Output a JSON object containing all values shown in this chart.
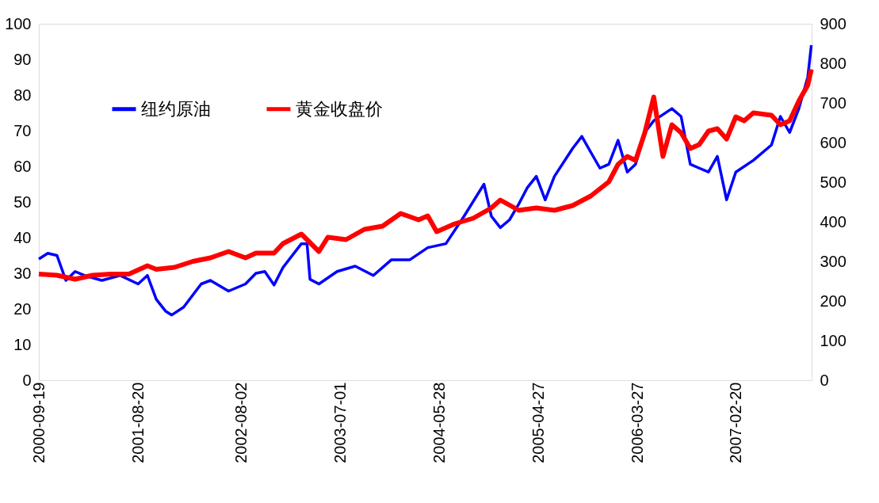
{
  "chart_data": {
    "type": "line",
    "xlim": [
      "2000-09-19",
      "2007-11-01"
    ],
    "xticks": [
      "2000-09-19",
      "2001-08-20",
      "2002-08-02",
      "2003-07-01",
      "2004-05-28",
      "2005-04-27",
      "2006-03-27",
      "2007-02-20"
    ],
    "ylim": [
      0,
      100
    ],
    "yticks": [
      0,
      10,
      20,
      30,
      40,
      50,
      60,
      70,
      80,
      90,
      100
    ],
    "y2lim": [
      0,
      900
    ],
    "y2ticks": [
      0,
      100,
      200,
      300,
      400,
      500,
      600,
      700,
      800,
      900
    ],
    "grid": false,
    "legend": "top left",
    "line_style": "solid",
    "marker": "none",
    "series": [
      {
        "name": "纽约原油",
        "color": "#0000ff",
        "x": [
          "2000-09-19",
          "2000-10-19",
          "2000-11-19",
          "2000-12-19",
          "2001-01-19",
          "2001-02-19",
          "2001-04-19",
          "2001-06-19",
          "2001-08-19",
          "2001-09-19",
          "2001-10-19",
          "2001-11-19",
          "2001-12-10",
          "2002-01-19",
          "2002-03-19",
          "2002-04-19",
          "2002-06-19",
          "2002-08-15",
          "2002-09-19",
          "2002-10-19",
          "2002-11-19",
          "2002-12-19",
          "2003-02-19",
          "2003-03-10",
          "2003-03-20",
          "2003-04-19",
          "2003-06-19",
          "2003-08-19",
          "2003-10-19",
          "2003-12-19",
          "2004-02-19",
          "2004-04-19",
          "2004-06-19",
          "2004-08-19",
          "2004-10-25",
          "2004-11-19",
          "2004-12-19",
          "2005-01-19",
          "2005-02-19",
          "2005-03-19",
          "2005-04-19",
          "2005-05-19",
          "2005-06-19",
          "2005-08-19",
          "2005-09-19",
          "2005-10-19",
          "2005-11-19",
          "2005-12-19",
          "2006-01-19",
          "2006-02-19",
          "2006-03-19",
          "2006-04-19",
          "2006-05-19",
          "2006-07-19",
          "2006-08-19",
          "2006-09-19",
          "2006-10-19",
          "2006-11-19",
          "2006-12-19",
          "2007-01-19",
          "2007-02-19",
          "2007-04-19",
          "2007-06-19",
          "2007-07-19",
          "2007-08-19",
          "2007-09-19",
          "2007-10-19",
          "2007-10-31"
        ],
        "values": [
          34,
          35.6,
          35,
          28,
          30.5,
          29.4,
          28,
          29.4,
          27,
          29.4,
          22.7,
          19.4,
          18.3,
          20.5,
          27,
          28,
          25,
          27,
          30,
          30.5,
          26.7,
          31.6,
          38.3,
          38.3,
          28.3,
          27,
          30.5,
          32,
          29.4,
          33.8,
          33.8,
          37.2,
          38.3,
          46,
          55,
          46,
          42.8,
          45,
          49.4,
          53.9,
          57.2,
          50.6,
          57.2,
          65,
          68.4,
          64,
          59.5,
          60.6,
          67.3,
          58.4,
          60.6,
          69.5,
          72.8,
          76.2,
          74,
          60.6,
          59.5,
          58.4,
          62.8,
          50.6,
          58.4,
          61.7,
          66,
          74,
          69.5,
          76.2,
          85,
          94
        ]
      },
      {
        "name": "黄金收盘价",
        "color": "#ff0000",
        "axis": "y2",
        "x": [
          "2000-09-19",
          "2000-11-19",
          "2001-01-19",
          "2001-03-19",
          "2001-05-19",
          "2001-07-19",
          "2001-09-19",
          "2001-10-19",
          "2001-12-19",
          "2002-02-19",
          "2002-04-19",
          "2002-06-19",
          "2002-08-15",
          "2002-09-19",
          "2002-11-19",
          "2002-12-19",
          "2003-02-19",
          "2003-04-19",
          "2003-05-19",
          "2003-07-19",
          "2003-09-19",
          "2003-11-19",
          "2004-01-19",
          "2004-03-19",
          "2004-04-19",
          "2004-05-19",
          "2004-07-19",
          "2004-09-19",
          "2004-11-19",
          "2004-12-19",
          "2005-02-19",
          "2005-04-19",
          "2005-06-19",
          "2005-08-19",
          "2005-10-19",
          "2005-12-19",
          "2006-01-19",
          "2006-02-19",
          "2006-03-19",
          "2006-04-19",
          "2006-05-19",
          "2006-06-19",
          "2006-07-19",
          "2006-08-19",
          "2006-09-19",
          "2006-10-19",
          "2006-11-19",
          "2006-12-19",
          "2007-01-19",
          "2007-02-19",
          "2007-03-19",
          "2007-04-19",
          "2007-06-19",
          "2007-07-19",
          "2007-08-19",
          "2007-09-19",
          "2007-10-19",
          "2007-10-31"
        ],
        "values": [
          268,
          265,
          255,
          265,
          268,
          268,
          289,
          280,
          285,
          300,
          309,
          325,
          309,
          321,
          321,
          345,
          369,
          325,
          361,
          355,
          381,
          389,
          421,
          405,
          415,
          375,
          395,
          409,
          435,
          455,
          429,
          435,
          429,
          441,
          465,
          501,
          545,
          565,
          555,
          625,
          715,
          565,
          645,
          625,
          585,
          595,
          629,
          635,
          609,
          665,
          655,
          675,
          669,
          645,
          655,
          705,
          745,
          785
        ]
      }
    ]
  }
}
